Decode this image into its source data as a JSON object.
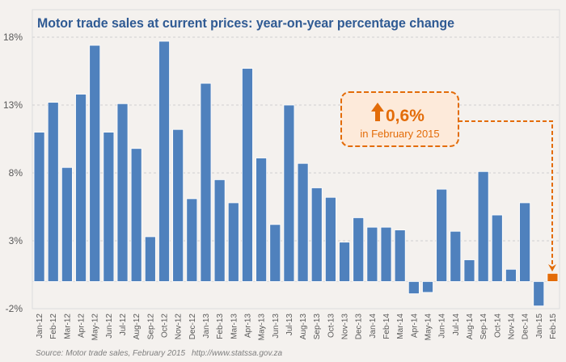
{
  "chart_data": {
    "type": "bar",
    "title": "Motor trade sales at current prices: year-on-year percentage change",
    "xlabel": "",
    "ylabel": "",
    "ylim": [
      -2,
      18
    ],
    "yticks": [
      18,
      13,
      8,
      3,
      -2
    ],
    "ytick_labels": [
      "18%",
      "13%",
      "8%",
      "3%",
      "-2%"
    ],
    "grid": true,
    "legend": "none",
    "categories": [
      "Jan-12",
      "Feb-12",
      "Mar-12",
      "Apr-12",
      "May-12",
      "Jun-12",
      "Jul-12",
      "Aug-12",
      "Sep-12",
      "Oct-12",
      "Nov-12",
      "Dec-12",
      "Jan-13",
      "Feb-13",
      "Mar-13",
      "Apr-13",
      "May-13",
      "Jun-13",
      "Jul-13",
      "Aug-13",
      "Sep-13",
      "Oct-13",
      "Nov-13",
      "Dec-13",
      "Jan-14",
      "Feb-14",
      "Mar-14",
      "Apr-14",
      "May-14",
      "Jun-14",
      "Jul-14",
      "Aug-14",
      "Sep-14",
      "Oct-14",
      "Nov-14",
      "Dec-14",
      "Jan-15",
      "Feb-15"
    ],
    "values": [
      11.0,
      13.2,
      8.4,
      13.8,
      17.4,
      11.0,
      13.1,
      9.8,
      3.3,
      17.7,
      11.2,
      6.1,
      14.6,
      7.5,
      5.8,
      15.7,
      9.1,
      4.2,
      13.0,
      8.7,
      6.9,
      6.2,
      2.9,
      4.7,
      4.0,
      4.0,
      3.8,
      -0.9,
      -0.8,
      6.8,
      3.7,
      1.6,
      8.1,
      4.9,
      0.9,
      5.8,
      -1.8,
      0.6
    ],
    "highlight_index": 37,
    "colors": {
      "bar": "#4F81BD",
      "highlight": "#E36C09",
      "title": "#2F5A93",
      "callout_fill": "#FDEADA",
      "callout_border": "#E36C09"
    },
    "annotation": {
      "arrow": "up-arrow",
      "value": "0,6%",
      "text": "in February 2015"
    },
    "source": "Source: Motor trade sales, February 2015",
    "url": "http://www.statssa.gov.za"
  }
}
